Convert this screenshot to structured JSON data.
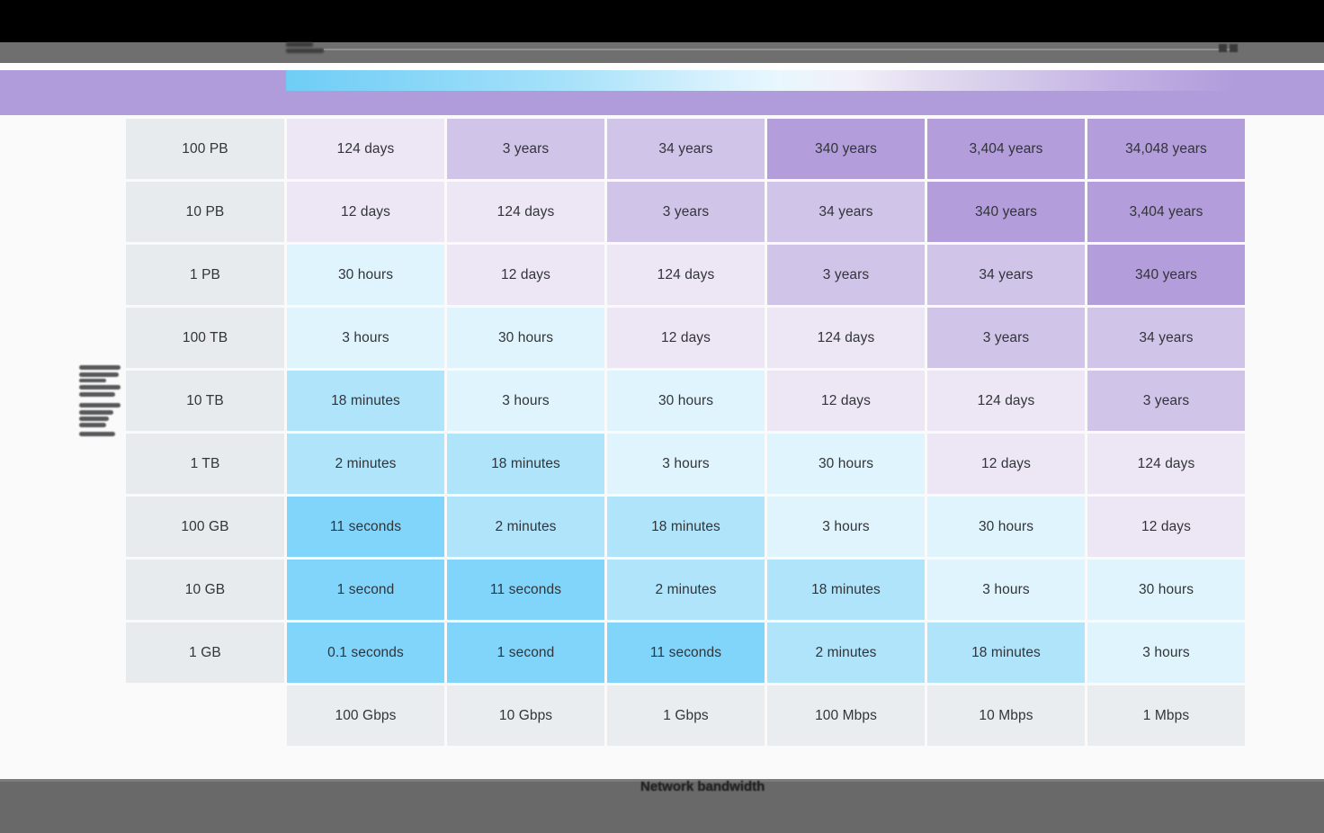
{
  "labels": {
    "x_axis": "Network bandwidth"
  },
  "colors": {
    "top_bar": "#000000",
    "toolbar": "#6F6F6F",
    "banner": "#B19CDB",
    "page_bg": "#FAFAFA",
    "footer": "#696969",
    "header_cell_bg": "#E8EBEE",
    "speed_cell_bg": "#EAEDF0",
    "cell_text": "#313438"
  },
  "chart_data": {
    "type": "heatmap",
    "title": "",
    "xlabel": "Network bandwidth",
    "rows": [
      "100 PB",
      "10 PB",
      "1 PB",
      "100 TB",
      "10 TB",
      "1 TB",
      "100 GB",
      "10 GB",
      "1 GB"
    ],
    "columns": [
      "100 Gbps",
      "10 Gbps",
      "1 Gbps",
      "100 Mbps",
      "10 Mbps",
      "1 Mbps"
    ],
    "matrix": [
      [
        "124 days",
        "3 years",
        "34 years",
        "340 years",
        "3,404 years",
        "34,048 years"
      ],
      [
        "12 days",
        "124 days",
        "3 years",
        "34 years",
        "340 years",
        "3,404 years"
      ],
      [
        "30 hours",
        "12 days",
        "124 days",
        "3 years",
        "34 years",
        "340 years"
      ],
      [
        "3 hours",
        "30 hours",
        "12 days",
        "124 days",
        "3 years",
        "34 years"
      ],
      [
        "18 minutes",
        "3 hours",
        "30 hours",
        "12 days",
        "124 days",
        "3 years"
      ],
      [
        "2 minutes",
        "18 minutes",
        "3 hours",
        "30 hours",
        "12 days",
        "124 days"
      ],
      [
        "11 seconds",
        "2 minutes",
        "18 minutes",
        "3 hours",
        "30 hours",
        "12 days"
      ],
      [
        "1 second",
        "11 seconds",
        "2 minutes",
        "18 minutes",
        "3 hours",
        "30 hours"
      ],
      [
        "0.1 seconds",
        "1 second",
        "11 seconds",
        "2 minutes",
        "18 minutes",
        "3 hours"
      ]
    ],
    "bands": [
      [
        "days",
        "years",
        "years",
        "centuries",
        "centuries",
        "centuries"
      ],
      [
        "days",
        "days",
        "years",
        "years",
        "centuries",
        "centuries"
      ],
      [
        "hours",
        "days",
        "days",
        "years",
        "years",
        "centuries"
      ],
      [
        "hours",
        "hours",
        "days",
        "days",
        "years",
        "years"
      ],
      [
        "minutes",
        "hours",
        "hours",
        "days",
        "days",
        "years"
      ],
      [
        "minutes",
        "minutes",
        "hours",
        "hours",
        "days",
        "days"
      ],
      [
        "seconds",
        "minutes",
        "minutes",
        "hours",
        "hours",
        "days"
      ],
      [
        "seconds",
        "seconds",
        "minutes",
        "minutes",
        "hours",
        "hours"
      ],
      [
        "seconds",
        "seconds",
        "seconds",
        "minutes",
        "minutes",
        "hours"
      ]
    ],
    "color_scale": {
      "seconds": "#81D4FA",
      "minutes": "#B0E4FB",
      "hours": "#E0F4FD",
      "days": "#EDE6F5",
      "years": "#D1C4E9",
      "centuries": "#B39DDB"
    },
    "legend_gradient_stops": [
      "#6FCDF5",
      "#A8E2FA",
      "#E9F7FE",
      "#F1EFF8",
      "#D5CBEA",
      "#B19CDB"
    ],
    "legend_position": "top"
  }
}
